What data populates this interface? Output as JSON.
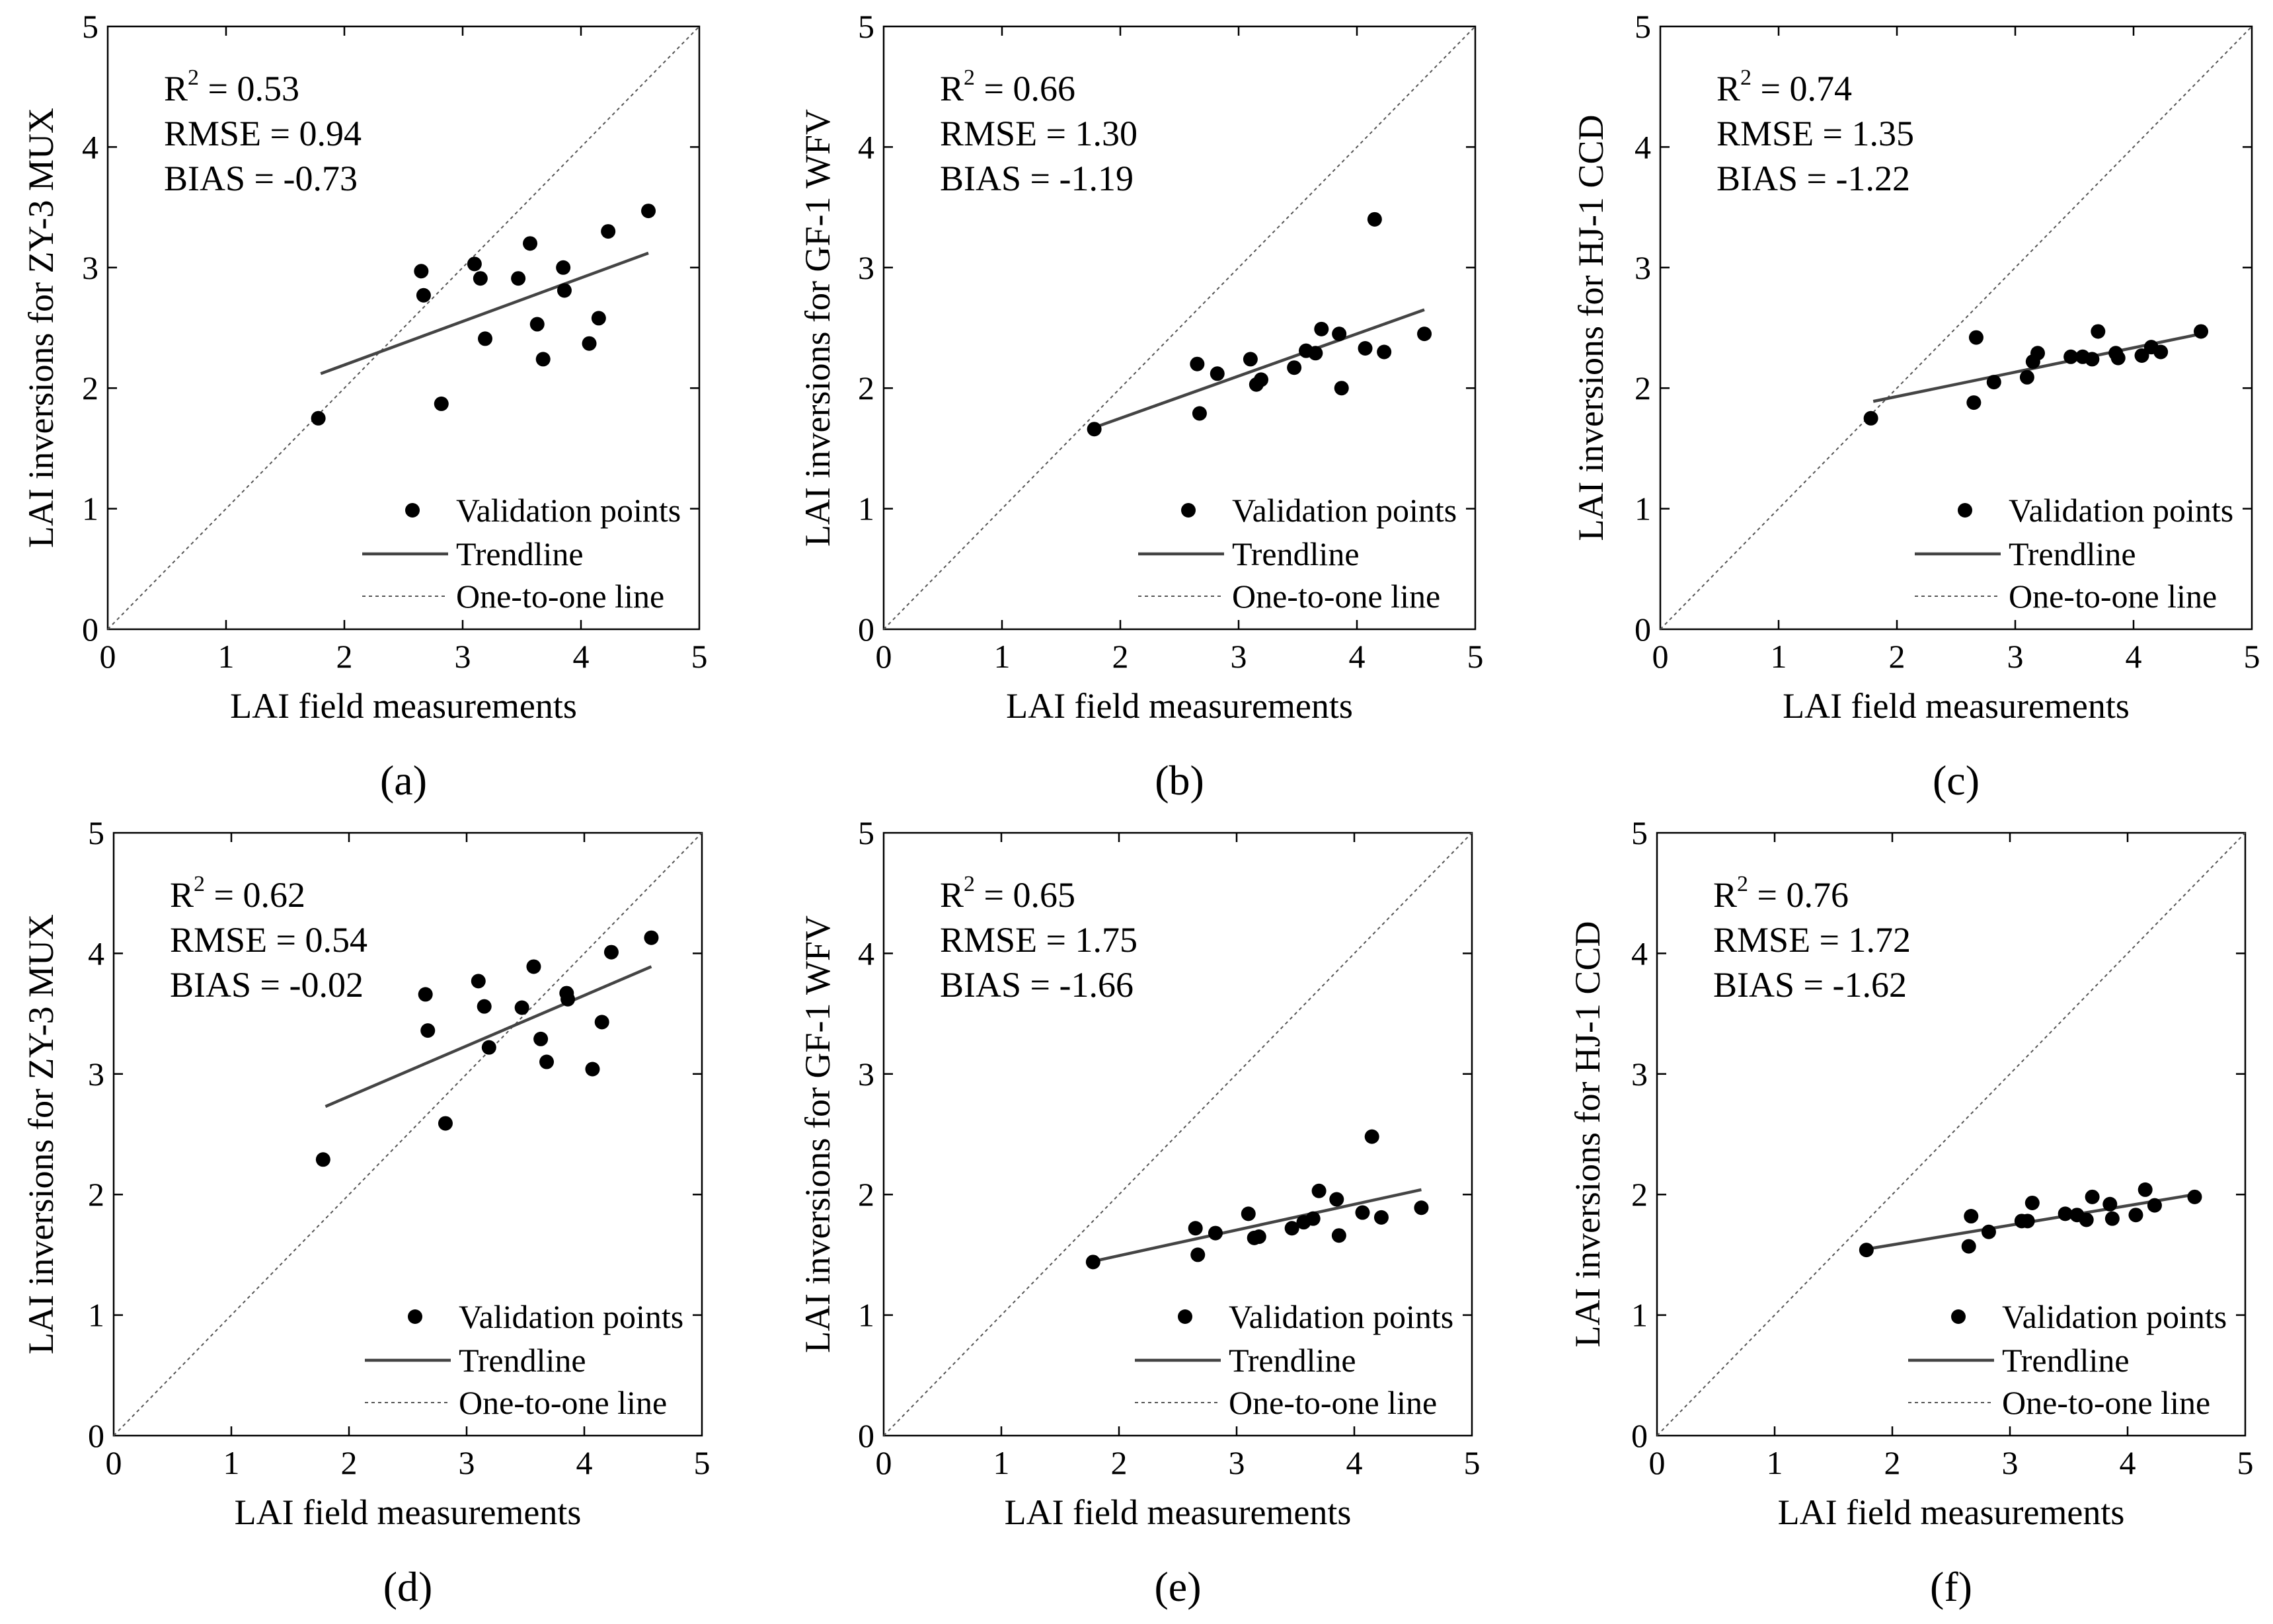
{
  "colors": {
    "background": "#ffffff",
    "ink": "#000000",
    "trendline": "#444444",
    "oneToOne": "#555555"
  },
  "legend": {
    "points": "Validation points",
    "trend": "Trendline",
    "oneToOne": "One-to-one line"
  },
  "x_axis_label": "LAI field measurements",
  "chart_data": [
    {
      "panel": "a",
      "type": "scatter",
      "label": "(a)",
      "xlabel": "LAI field measurements",
      "ylabel": "LAI inversions for ZY-3 MUX",
      "xlim": [
        0,
        5
      ],
      "ylim": [
        0,
        5
      ],
      "ticks": [
        0,
        1,
        2,
        3,
        4,
        5
      ],
      "stats": {
        "r2_prefix": "R",
        "r2_sup": "2",
        "r2": " = 0.53",
        "rmse": "RMSE = 0.94",
        "bias": "BIAS = -0.73"
      },
      "points": [
        [
          1.78,
          1.75
        ],
        [
          2.65,
          2.97
        ],
        [
          2.67,
          2.77
        ],
        [
          2.82,
          1.87
        ],
        [
          3.1,
          3.03
        ],
        [
          3.15,
          2.91
        ],
        [
          3.19,
          2.41
        ],
        [
          3.47,
          2.91
        ],
        [
          3.57,
          3.2
        ],
        [
          3.63,
          2.53
        ],
        [
          3.68,
          2.24
        ],
        [
          3.85,
          3.0
        ],
        [
          3.86,
          2.81
        ],
        [
          4.07,
          2.37
        ],
        [
          4.15,
          2.58
        ],
        [
          4.23,
          3.3
        ],
        [
          4.57,
          3.47
        ]
      ],
      "trend": [
        [
          1.8,
          2.12
        ],
        [
          4.57,
          3.12
        ]
      ]
    },
    {
      "panel": "b",
      "type": "scatter",
      "label": "(b)",
      "xlabel": "LAI field measurements",
      "ylabel": "LAI inversions for GF-1 WFV",
      "xlim": [
        0,
        5
      ],
      "ylim": [
        0,
        5
      ],
      "ticks": [
        0,
        1,
        2,
        3,
        4,
        5
      ],
      "stats": {
        "r2_prefix": "R",
        "r2_sup": "2",
        "r2": " = 0.66",
        "rmse": "RMSE = 1.30",
        "bias": "BIAS = -1.19"
      },
      "points": [
        [
          1.78,
          1.66
        ],
        [
          2.65,
          2.2
        ],
        [
          2.67,
          1.79
        ],
        [
          2.82,
          2.12
        ],
        [
          3.1,
          2.24
        ],
        [
          3.15,
          2.03
        ],
        [
          3.19,
          2.07
        ],
        [
          3.47,
          2.17
        ],
        [
          3.57,
          2.31
        ],
        [
          3.65,
          2.29
        ],
        [
          3.7,
          2.49
        ],
        [
          3.85,
          2.45
        ],
        [
          3.87,
          2.0
        ],
        [
          4.07,
          2.33
        ],
        [
          4.15,
          3.4
        ],
        [
          4.23,
          2.3
        ],
        [
          4.57,
          2.45
        ]
      ],
      "trend": [
        [
          1.8,
          1.68
        ],
        [
          4.57,
          2.65
        ]
      ]
    },
    {
      "panel": "c",
      "type": "scatter",
      "label": "(c)",
      "xlabel": "LAI field measurements",
      "ylabel": "LAI inversions for HJ-1 CCD",
      "xlim": [
        0,
        5
      ],
      "ylim": [
        0,
        5
      ],
      "ticks": [
        0,
        1,
        2,
        3,
        4,
        5
      ],
      "stats": {
        "r2_prefix": "R",
        "r2_sup": "2",
        "r2": " = 0.74",
        "rmse": "RMSE = 1.35",
        "bias": "BIAS = -1.22"
      },
      "points": [
        [
          1.78,
          1.75
        ],
        [
          2.65,
          1.88
        ],
        [
          2.67,
          2.42
        ],
        [
          2.82,
          2.05
        ],
        [
          3.1,
          2.09
        ],
        [
          3.15,
          2.22
        ],
        [
          3.19,
          2.29
        ],
        [
          3.47,
          2.26
        ],
        [
          3.57,
          2.26
        ],
        [
          3.65,
          2.24
        ],
        [
          3.7,
          2.47
        ],
        [
          3.85,
          2.29
        ],
        [
          3.87,
          2.25
        ],
        [
          4.07,
          2.27
        ],
        [
          4.15,
          2.34
        ],
        [
          4.23,
          2.3
        ],
        [
          4.57,
          2.47
        ]
      ],
      "trend": [
        [
          1.8,
          1.89
        ],
        [
          4.57,
          2.45
        ]
      ]
    },
    {
      "panel": "d",
      "type": "scatter",
      "label": "(d)",
      "xlabel": "LAI field measurements",
      "ylabel": "LAI inversions for ZY-3 MUX",
      "xlim": [
        0,
        5
      ],
      "ylim": [
        0,
        5
      ],
      "ticks": [
        0,
        1,
        2,
        3,
        4,
        5
      ],
      "stats": {
        "r2_prefix": "R",
        "r2_sup": "2",
        "r2": " = 0.62",
        "rmse": "RMSE = 0.54",
        "bias": "BIAS = -0.02"
      },
      "points": [
        [
          1.78,
          2.29
        ],
        [
          2.65,
          3.66
        ],
        [
          2.67,
          3.36
        ],
        [
          2.82,
          2.59
        ],
        [
          3.1,
          3.77
        ],
        [
          3.15,
          3.56
        ],
        [
          3.19,
          3.22
        ],
        [
          3.47,
          3.55
        ],
        [
          3.57,
          3.89
        ],
        [
          3.63,
          3.29
        ],
        [
          3.68,
          3.1
        ],
        [
          3.85,
          3.67
        ],
        [
          3.86,
          3.62
        ],
        [
          4.07,
          3.04
        ],
        [
          4.15,
          3.43
        ],
        [
          4.23,
          4.01
        ],
        [
          4.57,
          4.13
        ]
      ],
      "trend": [
        [
          1.8,
          2.73
        ],
        [
          4.57,
          3.89
        ]
      ]
    },
    {
      "panel": "e",
      "type": "scatter",
      "label": "(e)",
      "xlabel": "LAI field measurements",
      "ylabel": "LAI inversions for GF-1 WFV",
      "xlim": [
        0,
        5
      ],
      "ylim": [
        0,
        5
      ],
      "ticks": [
        0,
        1,
        2,
        3,
        4,
        5
      ],
      "stats": {
        "r2_prefix": "R",
        "r2_sup": "2",
        "r2": " = 0.65",
        "rmse": "RMSE = 1.75",
        "bias": "BIAS = -1.66"
      },
      "points": [
        [
          1.78,
          1.44
        ],
        [
          2.65,
          1.72
        ],
        [
          2.67,
          1.5
        ],
        [
          2.82,
          1.68
        ],
        [
          3.1,
          1.84
        ],
        [
          3.15,
          1.64
        ],
        [
          3.19,
          1.65
        ],
        [
          3.47,
          1.72
        ],
        [
          3.57,
          1.77
        ],
        [
          3.65,
          1.8
        ],
        [
          3.7,
          2.03
        ],
        [
          3.85,
          1.96
        ],
        [
          3.87,
          1.66
        ],
        [
          4.07,
          1.85
        ],
        [
          4.15,
          2.48
        ],
        [
          4.23,
          1.81
        ],
        [
          4.57,
          1.89
        ]
      ],
      "trend": [
        [
          1.8,
          1.45
        ],
        [
          4.57,
          2.04
        ]
      ]
    },
    {
      "panel": "f",
      "type": "scatter",
      "label": "(f)",
      "xlabel": "LAI field measurements",
      "ylabel": "LAI inversions for HJ-1 CCD",
      "xlim": [
        0,
        5
      ],
      "ylim": [
        0,
        5
      ],
      "ticks": [
        0,
        1,
        2,
        3,
        4,
        5
      ],
      "stats": {
        "r2_prefix": "R",
        "r2_sup": "2",
        "r2": " = 0.76",
        "rmse": "RMSE = 1.72",
        "bias": "BIAS = -1.62"
      },
      "points": [
        [
          1.78,
          1.54
        ],
        [
          2.65,
          1.57
        ],
        [
          2.67,
          1.82
        ],
        [
          2.82,
          1.69
        ],
        [
          3.1,
          1.78
        ],
        [
          3.15,
          1.78
        ],
        [
          3.19,
          1.93
        ],
        [
          3.47,
          1.84
        ],
        [
          3.57,
          1.83
        ],
        [
          3.65,
          1.79
        ],
        [
          3.7,
          1.98
        ],
        [
          3.85,
          1.92
        ],
        [
          3.87,
          1.8
        ],
        [
          4.07,
          1.83
        ],
        [
          4.15,
          2.04
        ],
        [
          4.23,
          1.91
        ],
        [
          4.57,
          1.98
        ]
      ],
      "trend": [
        [
          1.8,
          1.55
        ],
        [
          4.57,
          2.0
        ]
      ]
    }
  ]
}
